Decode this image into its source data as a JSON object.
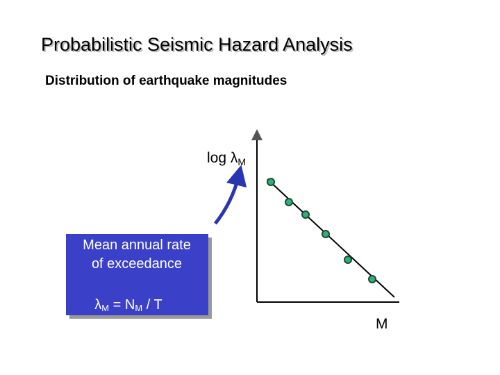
{
  "title": "Probabilistic Seismic Hazard Analysis",
  "subtitle": "Distribution of earthquake magnitudes",
  "plot": {
    "y_axis_label": {
      "text": "log λ",
      "subscript": "M"
    },
    "x_axis_label": "M"
  },
  "callout": {
    "lines": [
      "Mean annual rate",
      "of exceedance"
    ],
    "formula": [
      "λ",
      "M",
      " = N",
      "M",
      " / T"
    ]
  }
}
